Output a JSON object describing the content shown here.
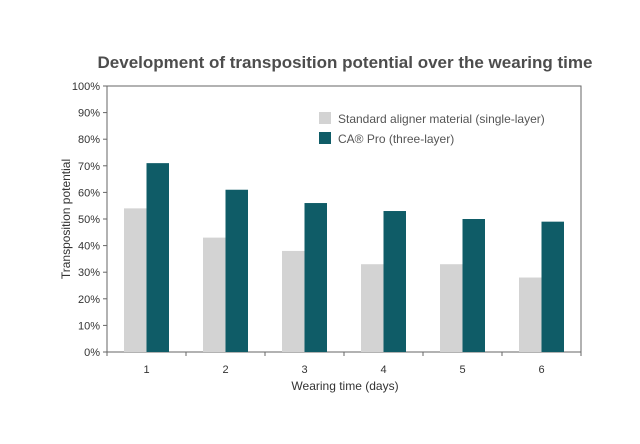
{
  "chart_data": {
    "type": "bar",
    "title": "Development of transposition potential over the wearing time",
    "xlabel": "Wearing time (days)",
    "ylabel": "Transposition potential",
    "categories": [
      "1",
      "2",
      "3",
      "4",
      "5",
      "6"
    ],
    "ylim": [
      0,
      100
    ],
    "yticks": [
      "0%",
      "10%",
      "20%",
      "30%",
      "40%",
      "50%",
      "60%",
      "70%",
      "80%",
      "90%",
      "100%"
    ],
    "grid": false,
    "legend_position": "top-right",
    "series": [
      {
        "name": "Standard aligner material (single-layer)",
        "color": "#d3d3d3",
        "values": [
          54,
          43,
          38,
          33,
          33,
          28
        ]
      },
      {
        "name": "CA® Pro (three-layer)",
        "color": "#0f5c67",
        "values": [
          71,
          61,
          56,
          53,
          50,
          49
        ]
      }
    ]
  }
}
